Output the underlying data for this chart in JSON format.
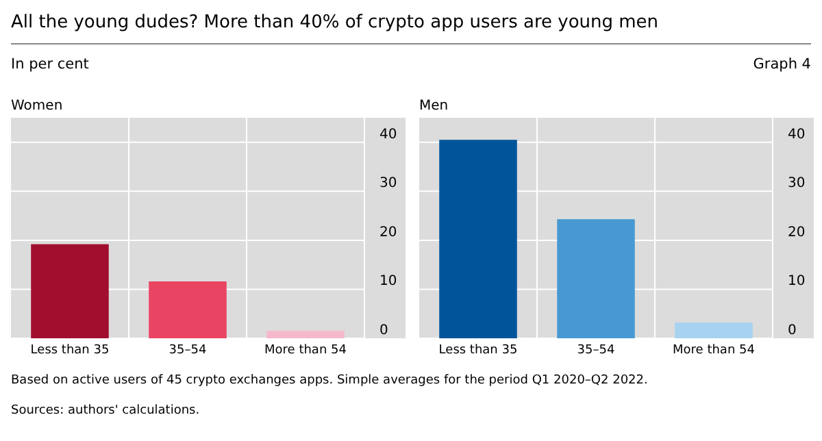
{
  "chart_data": [
    {
      "type": "bar",
      "title": "Women",
      "categories": [
        "Less than 35",
        "35–54",
        "More than 54"
      ],
      "values": [
        19.2,
        11.6,
        1.5
      ],
      "colors": [
        "#a20e2e",
        "#e94462",
        "#f6b8cb"
      ],
      "ylim": [
        0,
        45
      ],
      "yticks": [
        0,
        10,
        20,
        30,
        40
      ],
      "grid": true,
      "annotations": [
        "All the young dudes? More than 40% of crypto app users are young men",
        "In per cent",
        "Graph 4",
        "Based on active users of 45 crypto exchanges apps. Simple averages for the period Q1 2020–Q2 2022.",
        "Sources: authors' calculations."
      ]
    },
    {
      "type": "bar",
      "title": "Men",
      "categories": [
        "Less than 35",
        "35–54",
        "More than 54"
      ],
      "values": [
        40.5,
        24.3,
        3.2
      ],
      "colors": [
        "#00549a",
        "#4899d2",
        "#a7d3f0"
      ],
      "ylim": [
        0,
        45
      ],
      "yticks": [
        0,
        10,
        20,
        30,
        40
      ],
      "grid": true
    }
  ]
}
